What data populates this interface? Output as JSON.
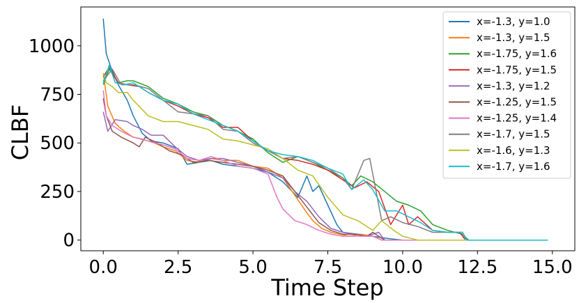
{
  "chart_data": {
    "type": "line",
    "xlabel": "Time Step",
    "ylabel": "CLBF",
    "xlim": [
      -0.75,
      15.75
    ],
    "ylim": [
      -55,
      1200
    ],
    "xticks": [
      "0.0",
      "2.5",
      "5.0",
      "7.5",
      "10.0",
      "12.5",
      "15.0"
    ],
    "yticks": [
      "0",
      "250",
      "500",
      "750",
      "1000"
    ],
    "grid": false,
    "legend_position": "top-right",
    "series": [
      {
        "name": "x=-1.3, y=1.0",
        "color": "#1f77b4",
        "x": [
          0,
          0.1,
          0.25,
          0.5,
          0.8,
          1.0,
          1.3,
          1.6,
          2.0,
          2.5,
          2.8,
          3.2,
          3.6,
          4.0,
          5.0,
          5.5,
          6.0,
          6.5,
          6.8,
          7.0,
          7.2,
          7.5,
          7.8,
          8.0,
          8.5,
          9.0,
          9.4,
          10.0,
          11.0,
          12.0,
          13.0,
          14.0,
          14.85
        ],
        "y": [
          1140,
          960,
          890,
          800,
          720,
          640,
          550,
          510,
          500,
          470,
          390,
          400,
          410,
          390,
          370,
          350,
          300,
          220,
          330,
          250,
          280,
          180,
          80,
          40,
          30,
          20,
          10,
          0,
          0,
          0,
          0,
          0,
          0
        ]
      },
      {
        "name": "x=-1.3, y=1.5",
        "color": "#ff7f0e",
        "x": [
          0,
          0.15,
          0.4,
          0.7,
          1.0,
          1.3,
          1.7,
          2.0,
          2.4,
          2.8,
          3.2,
          3.6,
          4.0,
          4.5,
          5.0,
          5.5,
          6.0,
          6.4,
          6.8,
          7.0,
          7.3,
          7.6,
          7.9,
          8.2,
          8.6,
          9.0,
          9.3,
          10.0,
          11.0,
          12.0,
          13.0,
          14.0,
          14.85
        ],
        "y": [
          860,
          690,
          600,
          560,
          530,
          520,
          500,
          480,
          460,
          410,
          400,
          420,
          410,
          410,
          380,
          370,
          320,
          230,
          140,
          100,
          60,
          40,
          30,
          20,
          30,
          20,
          0,
          0,
          0,
          0,
          0,
          0,
          0
        ]
      },
      {
        "name": "x=-1.75, y=1.6",
        "color": "#2ca02c",
        "x": [
          0,
          0.2,
          0.5,
          0.8,
          1.0,
          1.5,
          2.0,
          2.5,
          3.0,
          3.5,
          4.0,
          4.5,
          5.0,
          5.5,
          6.0,
          6.5,
          7.0,
          7.5,
          8.0,
          8.3,
          8.6,
          9.0,
          9.4,
          9.8,
          10.2,
          10.6,
          11.0,
          11.5,
          12.0,
          12.2,
          13.0,
          14.0,
          14.85
        ],
        "y": [
          800,
          880,
          810,
          820,
          820,
          790,
          730,
          700,
          660,
          640,
          590,
          560,
          520,
          450,
          400,
          430,
          400,
          360,
          320,
          280,
          330,
          300,
          250,
          200,
          180,
          150,
          80,
          50,
          30,
          0,
          0,
          0,
          0
        ]
      },
      {
        "name": "x=-1.75, y=1.5",
        "color": "#d62728",
        "x": [
          0,
          0.2,
          0.5,
          0.8,
          1.2,
          1.5,
          2.0,
          2.5,
          3.0,
          3.5,
          4.0,
          4.5,
          5.0,
          5.5,
          6.0,
          6.5,
          7.0,
          7.5,
          8.0,
          8.4,
          8.8,
          9.2,
          9.6,
          10.0,
          10.2,
          10.5,
          11.0,
          11.5,
          11.9,
          12.1,
          13.0,
          14.0,
          14.85
        ],
        "y": [
          840,
          890,
          810,
          800,
          790,
          760,
          720,
          690,
          650,
          630,
          580,
          580,
          510,
          460,
          420,
          410,
          390,
          360,
          310,
          270,
          300,
          250,
          80,
          180,
          80,
          120,
          50,
          40,
          40,
          0,
          0,
          0,
          0
        ]
      },
      {
        "name": "x=-1.3, y=1.2",
        "color": "#9467bd",
        "x": [
          0,
          0.15,
          0.4,
          0.8,
          1.0,
          1.3,
          1.6,
          2.0,
          2.4,
          2.8,
          3.2,
          3.6,
          4.0,
          4.5,
          5.0,
          5.5,
          6.0,
          6.4,
          6.8,
          7.2,
          7.6,
          8.0,
          8.4,
          8.8,
          9.2,
          9.4,
          10.0,
          11.0,
          12.0,
          13.0,
          14.0,
          14.85
        ],
        "y": [
          660,
          560,
          620,
          610,
          590,
          570,
          540,
          540,
          480,
          430,
          410,
          420,
          420,
          400,
          380,
          350,
          320,
          250,
          200,
          120,
          60,
          40,
          30,
          20,
          40,
          0,
          0,
          0,
          0,
          0,
          0,
          0
        ]
      },
      {
        "name": "x=-1.25, y=1.5",
        "color": "#8c564b",
        "x": [
          0,
          0.1,
          0.3,
          0.6,
          1.0,
          1.2,
          1.4,
          1.8,
          2.2,
          2.6,
          3.0,
          3.5,
          4.0,
          4.5,
          5.0,
          5.5,
          6.0,
          6.4,
          6.8,
          7.2,
          7.6,
          8.0,
          8.4,
          8.8,
          9.0,
          9.4,
          10.0,
          11.0,
          12.0,
          13.0,
          14.0,
          14.85
        ],
        "y": [
          730,
          640,
          560,
          530,
          500,
          480,
          530,
          500,
          460,
          440,
          400,
          410,
          400,
          390,
          380,
          360,
          330,
          250,
          170,
          90,
          50,
          30,
          30,
          20,
          40,
          0,
          0,
          0,
          0,
          0,
          0,
          0
        ]
      },
      {
        "name": "x=-1.25, y=1.4",
        "color": "#e377c2",
        "x": [
          0,
          0.1,
          0.3,
          0.6,
          1.0,
          1.5,
          2.0,
          2.4,
          2.8,
          3.2,
          3.6,
          4.0,
          4.5,
          5.0,
          5.5,
          5.8,
          6.0,
          6.4,
          6.8,
          7.2,
          7.6,
          8.0,
          8.4,
          8.8,
          9.0,
          9.3,
          10.0,
          11.0,
          12.0,
          13.0,
          14.0,
          14.85
        ],
        "y": [
          770,
          640,
          590,
          560,
          530,
          510,
          490,
          470,
          420,
          410,
          430,
          410,
          380,
          370,
          340,
          220,
          160,
          100,
          80,
          50,
          30,
          20,
          20,
          20,
          20,
          0,
          0,
          0,
          0,
          0,
          0,
          0
        ]
      },
      {
        "name": "x=-1.7, y=1.5",
        "color": "#7f7f7f",
        "x": [
          0,
          0.3,
          0.6,
          1.0,
          1.5,
          2.0,
          2.5,
          3.0,
          3.5,
          4.0,
          4.5,
          5.0,
          5.5,
          6.0,
          6.5,
          7.0,
          7.5,
          8.0,
          8.3,
          8.7,
          8.9,
          9.1,
          9.3,
          9.6,
          10.0,
          10.5,
          11.0,
          11.5,
          12.0,
          12.1,
          13.0,
          14.0,
          14.85
        ],
        "y": [
          820,
          880,
          800,
          800,
          780,
          720,
          660,
          650,
          640,
          570,
          560,
          500,
          460,
          420,
          430,
          400,
          370,
          320,
          260,
          410,
          420,
          260,
          100,
          120,
          90,
          70,
          40,
          40,
          40,
          0,
          0,
          0,
          0
        ]
      },
      {
        "name": "x=-1.6, y=1.3",
        "color": "#bcbd22",
        "x": [
          0,
          0.1,
          0.3,
          0.5,
          0.8,
          1.0,
          1.5,
          2.0,
          2.5,
          3.0,
          3.5,
          4.0,
          4.5,
          5.0,
          5.5,
          6.0,
          6.5,
          7.0,
          7.5,
          8.0,
          8.5,
          9.0,
          9.3,
          9.7,
          10.0,
          10.5,
          11.0,
          11.5,
          12.0,
          13.0,
          14.0,
          14.85
        ],
        "y": [
          860,
          810,
          790,
          760,
          760,
          720,
          640,
          610,
          610,
          590,
          570,
          520,
          510,
          490,
          470,
          420,
          360,
          330,
          220,
          130,
          100,
          50,
          100,
          50,
          20,
          0,
          0,
          0,
          0,
          0,
          0,
          0
        ]
      },
      {
        "name": "x=-1.7, y=1.6",
        "color": "#17becf",
        "x": [
          0,
          0.2,
          0.4,
          0.7,
          1.0,
          1.5,
          2.0,
          2.5,
          3.0,
          3.5,
          4.0,
          4.5,
          5.0,
          5.5,
          6.0,
          6.5,
          7.0,
          7.5,
          8.0,
          8.3,
          8.7,
          9.0,
          9.4,
          9.8,
          10.2,
          10.6,
          11.0,
          11.5,
          12.0,
          12.15,
          13.0,
          14.0,
          14.85
        ],
        "y": [
          810,
          900,
          810,
          800,
          810,
          760,
          720,
          700,
          650,
          620,
          590,
          560,
          510,
          460,
          440,
          430,
          410,
          370,
          340,
          260,
          310,
          260,
          150,
          150,
          120,
          90,
          50,
          40,
          40,
          0,
          0,
          0,
          0
        ]
      }
    ]
  }
}
